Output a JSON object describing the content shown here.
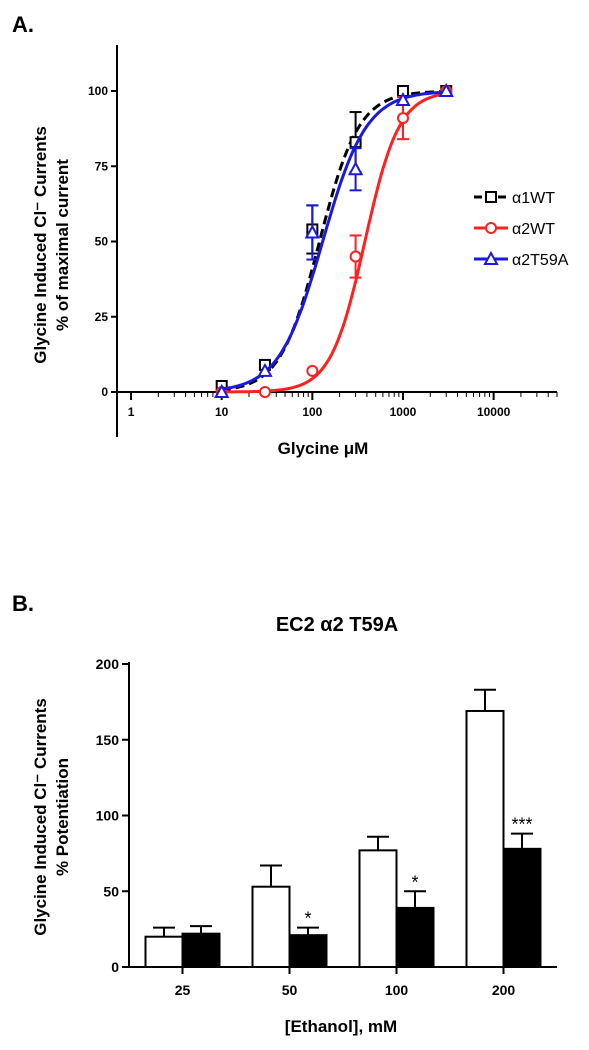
{
  "chart_data": [
    {
      "type": "line",
      "panel_label": "A.",
      "ylabel_line1": "Glycine Induced Cl⁻ Currents",
      "ylabel_line2": "% of maximal current",
      "xlabel": "Glycine μM",
      "x_scale": "log",
      "xlim": [
        0.7,
        50000
      ],
      "ylim": [
        -15,
        112
      ],
      "yticks": [
        "0",
        "25",
        "50",
        "75",
        "100"
      ],
      "xticks": [
        "1",
        "10",
        "100",
        "1000",
        "10000"
      ],
      "legend_position": "right",
      "series": [
        {
          "name": "α1WT",
          "color": "#000000",
          "marker": "square",
          "line_style": "dashed",
          "ec50": 120,
          "hill": 2.0,
          "points": [
            {
              "x": 10,
              "y": 2,
              "err": 0
            },
            {
              "x": 30,
              "y": 9,
              "err": 0
            },
            {
              "x": 100,
              "y": 54,
              "err": 8
            },
            {
              "x": 300,
              "y": 83,
              "err": 10
            },
            {
              "x": 1000,
              "y": 100,
              "err": 0
            },
            {
              "x": 3000,
              "y": 100,
              "err": 0
            }
          ]
        },
        {
          "name": "α2WT",
          "color": "#ff2020",
          "marker": "circle",
          "line_style": "solid",
          "ec50": 380,
          "hill": 2.3,
          "points": [
            {
              "x": 10,
              "y": 0,
              "err": 0
            },
            {
              "x": 30,
              "y": 0,
              "err": 0
            },
            {
              "x": 100,
              "y": 7,
              "err": 0
            },
            {
              "x": 300,
              "y": 45,
              "err": 7
            },
            {
              "x": 1000,
              "y": 91,
              "err": 7
            },
            {
              "x": 3000,
              "y": 100,
              "err": 0
            }
          ]
        },
        {
          "name": "α2T59A",
          "color": "#1a1adc",
          "marker": "triangle",
          "line_style": "solid",
          "ec50": 130,
          "hill": 1.8,
          "points": [
            {
              "x": 10,
              "y": 0,
              "err": 0
            },
            {
              "x": 30,
              "y": 7,
              "err": 0
            },
            {
              "x": 100,
              "y": 53,
              "err": 9
            },
            {
              "x": 300,
              "y": 74,
              "err": 7
            },
            {
              "x": 1000,
              "y": 97,
              "err": 0
            },
            {
              "x": 3000,
              "y": 100,
              "err": 0
            }
          ]
        }
      ]
    },
    {
      "type": "bar",
      "panel_label": "B.",
      "title": "EC2 α2 T59A",
      "ylabel_line1": "Glycine Induced Cl⁻ Currents",
      "ylabel_line2": "% Potentiation",
      "xlabel": "[Ethanol], mM",
      "categories": [
        "25",
        "50",
        "100",
        "200"
      ],
      "ylim": [
        0,
        200
      ],
      "yticks": [
        "0",
        "50",
        "100",
        "150",
        "200"
      ],
      "series": [
        {
          "fill": "#ffffff",
          "values": [
            20,
            53,
            77,
            169
          ],
          "errors": [
            6,
            14,
            9,
            14
          ]
        },
        {
          "fill": "#000000",
          "values": [
            22,
            21,
            39,
            78
          ],
          "errors": [
            5,
            5,
            11,
            10
          ]
        }
      ],
      "significance": [
        "",
        "*",
        "*",
        "***"
      ]
    }
  ]
}
